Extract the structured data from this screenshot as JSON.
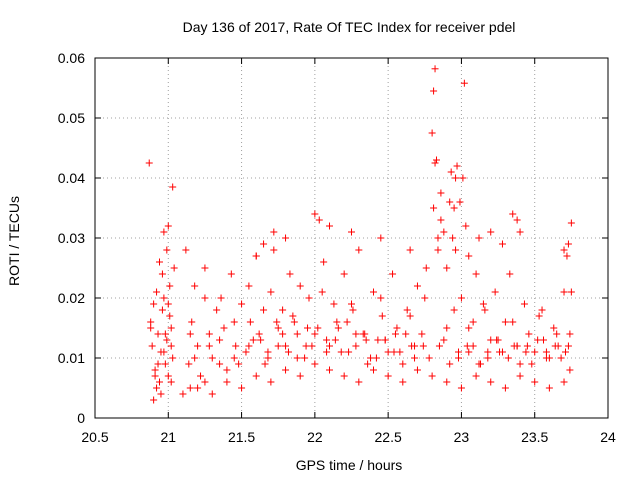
{
  "chart_data": {
    "type": "scatter",
    "title": "Day 136 of 2017, Rate Of TEC Index for receiver pdel",
    "xlabel": "GPS time / hours",
    "ylabel": "ROTI / TECUs",
    "xlim": [
      20.5,
      24
    ],
    "ylim": [
      0,
      0.06
    ],
    "xticks": [
      20.5,
      21,
      21.5,
      22,
      22.5,
      23,
      23.5,
      24
    ],
    "xtick_labels": [
      "20.5",
      "21",
      "21.5",
      "22",
      "22.5",
      "23",
      "23.5",
      "24"
    ],
    "yticks": [
      0,
      0.01,
      0.02,
      0.03,
      0.04,
      0.05,
      0.06
    ],
    "ytick_labels": [
      "0",
      "0.01",
      "0.02",
      "0.03",
      "0.04",
      "0.05",
      "0.06"
    ],
    "grid": true,
    "marker": "+",
    "color": "#ff0000",
    "series": [
      {
        "name": "ROTI",
        "x": [
          20.87,
          20.88,
          20.89,
          20.9,
          20.91,
          20.92,
          20.93,
          20.94,
          20.95,
          20.96,
          20.97,
          20.98,
          20.99,
          21.0,
          21.01,
          21.02,
          21.03,
          21.04,
          20.95,
          20.97,
          20.99,
          21.01,
          21.03,
          20.9,
          20.92,
          20.94,
          20.96,
          20.98,
          21.0,
          21.02,
          20.93,
          21.0,
          20.88,
          20.91,
          20.97,
          21.02,
          21.12,
          21.14,
          21.16,
          21.18,
          21.2,
          21.22,
          21.25,
          21.28,
          21.3,
          21.33,
          21.36,
          21.4,
          21.43,
          21.46,
          21.5,
          21.53,
          21.56,
          21.6,
          21.63,
          21.66,
          21.7,
          21.72,
          21.75,
          21.78,
          21.8,
          21.83,
          21.86,
          21.9,
          21.93,
          21.96,
          22.0,
          22.03,
          22.06,
          22.1,
          22.13,
          22.16,
          22.2,
          22.23,
          22.26,
          22.3,
          22.33,
          22.36,
          22.4,
          22.43,
          22.46,
          22.5,
          22.53,
          22.56,
          22.6,
          22.63,
          22.66,
          22.7,
          22.73,
          22.76,
          22.8,
          22.81,
          22.82,
          22.83,
          22.84,
          22.86,
          22.88,
          22.9,
          22.93,
          22.96,
          23.0,
          23.02,
          23.05,
          23.08,
          23.1,
          23.13,
          23.16,
          23.2,
          23.23,
          23.26,
          23.3,
          23.33,
          23.36,
          23.4,
          23.43,
          23.46,
          23.5,
          23.53,
          23.56,
          23.6,
          23.63,
          23.66,
          23.7,
          23.72,
          23.74,
          23.75,
          21.2,
          21.3,
          21.4,
          21.5,
          21.6,
          21.7,
          21.8,
          21.9,
          22.0,
          22.1,
          22.2,
          22.3,
          22.4,
          22.5,
          22.6,
          22.7,
          22.8,
          22.9,
          23.0,
          23.1,
          23.2,
          23.3,
          23.4,
          23.5,
          23.6,
          23.7,
          21.15,
          21.25,
          21.35,
          21.45,
          21.55,
          21.65,
          21.75,
          21.85,
          21.95,
          22.05,
          22.15,
          22.25,
          22.35,
          22.45,
          22.55,
          22.65,
          22.75,
          22.85,
          22.95,
          23.05,
          23.15,
          23.25,
          23.35,
          23.45,
          23.55,
          23.65,
          23.73,
          21.18,
          21.28,
          21.38,
          21.48,
          21.58,
          21.68,
          21.78,
          21.88,
          21.98,
          22.08,
          22.18,
          22.28,
          22.38,
          22.48,
          22.58,
          22.68,
          22.78,
          22.88,
          22.98,
          23.08,
          23.18,
          23.28,
          23.38,
          23.48,
          23.58,
          23.68,
          22.82,
          22.83,
          22.81,
          22.84,
          22.86,
          22.92,
          22.95,
          22.97,
          22.99,
          23.01,
          23.03,
          22.9,
          22.94,
          22.96,
          23.05,
          23.12,
          23.2,
          23.28,
          23.35,
          23.38,
          23.4,
          22.0,
          22.1,
          22.25,
          22.45,
          22.65,
          21.65,
          21.72,
          21.8,
          21.6,
          21.1,
          21.15,
          21.25,
          21.35,
          21.45,
          21.55,
          21.62,
          21.68,
          21.74,
          21.82,
          21.88,
          21.94,
          22.02,
          22.08,
          22.14,
          22.22,
          22.28,
          22.34,
          22.42,
          22.48,
          22.54,
          22.62,
          22.68,
          22.74,
          22.92,
          22.98,
          23.04,
          23.12,
          23.18,
          23.24,
          23.32,
          23.38,
          23.44,
          23.52,
          23.58,
          23.64,
          23.71,
          23.74,
          23.7,
          23.73,
          23.75
        ],
        "y": [
          0.0425,
          0.016,
          0.012,
          0.019,
          0.008,
          0.005,
          0.014,
          0.026,
          0.011,
          0.018,
          0.031,
          0.009,
          0.013,
          0.007,
          0.022,
          0.015,
          0.0385,
          0.025,
          0.004,
          0.02,
          0.028,
          0.017,
          0.01,
          0.003,
          0.021,
          0.006,
          0.024,
          0.014,
          0.032,
          0.012,
          0.009,
          0.019,
          0.015,
          0.007,
          0.011,
          0.006,
          0.028,
          0.009,
          0.016,
          0.022,
          0.012,
          0.007,
          0.025,
          0.014,
          0.01,
          0.018,
          0.02,
          0.008,
          0.024,
          0.012,
          0.019,
          0.011,
          0.016,
          0.027,
          0.013,
          0.009,
          0.021,
          0.031,
          0.015,
          0.018,
          0.012,
          0.024,
          0.016,
          0.022,
          0.01,
          0.02,
          0.014,
          0.033,
          0.026,
          0.012,
          0.019,
          0.015,
          0.024,
          0.011,
          0.018,
          0.028,
          0.014,
          0.009,
          0.021,
          0.013,
          0.017,
          0.011,
          0.024,
          0.015,
          0.009,
          0.018,
          0.012,
          0.022,
          0.014,
          0.025,
          0.0475,
          0.0545,
          0.0582,
          0.043,
          0.028,
          0.0375,
          0.031,
          0.015,
          0.041,
          0.04,
          0.02,
          0.0558,
          0.011,
          0.016,
          0.024,
          0.009,
          0.018,
          0.013,
          0.021,
          0.011,
          0.016,
          0.024,
          0.012,
          0.009,
          0.019,
          0.014,
          0.011,
          0.017,
          0.013,
          0.01,
          0.015,
          0.012,
          0.021,
          0.027,
          0.008,
          0.0325,
          0.005,
          0.004,
          0.006,
          0.005,
          0.007,
          0.006,
          0.008,
          0.007,
          0.009,
          0.008,
          0.007,
          0.006,
          0.008,
          0.007,
          0.006,
          0.008,
          0.007,
          0.006,
          0.005,
          0.007,
          0.006,
          0.005,
          0.007,
          0.006,
          0.005,
          0.006,
          0.014,
          0.02,
          0.013,
          0.016,
          0.022,
          0.018,
          0.012,
          0.017,
          0.015,
          0.021,
          0.016,
          0.019,
          0.013,
          0.02,
          0.014,
          0.017,
          0.02,
          0.012,
          0.018,
          0.015,
          0.019,
          0.013,
          0.016,
          0.012,
          0.018,
          0.014,
          0.012,
          0.01,
          0.012,
          0.015,
          0.009,
          0.013,
          0.011,
          0.014,
          0.01,
          0.012,
          0.013,
          0.011,
          0.014,
          0.01,
          0.013,
          0.011,
          0.012,
          0.01,
          0.013,
          0.011,
          0.012,
          0.01,
          0.011,
          0.012,
          0.009,
          0.011,
          0.01,
          0.0425,
          0.043,
          0.035,
          0.03,
          0.033,
          0.036,
          0.035,
          0.042,
          0.036,
          0.04,
          0.032,
          0.025,
          0.03,
          0.028,
          0.027,
          0.03,
          0.031,
          0.029,
          0.034,
          0.033,
          0.031,
          0.034,
          0.032,
          0.031,
          0.03,
          0.028,
          0.029,
          0.028,
          0.03,
          0.027,
          0.004,
          0.005,
          0.006,
          0.009,
          0.01,
          0.012,
          0.014,
          0.01,
          0.016,
          0.011,
          0.014,
          0.012,
          0.015,
          0.011,
          0.013,
          0.016,
          0.012,
          0.014,
          0.01,
          0.013,
          0.011,
          0.014,
          0.01,
          0.012,
          0.009,
          0.01,
          0.012,
          0.009,
          0.011,
          0.013,
          0.01,
          0.012,
          0.011,
          0.013,
          0.01,
          0.012,
          0.011,
          0.014,
          0.028,
          0.029,
          0.021
        ]
      }
    ]
  }
}
